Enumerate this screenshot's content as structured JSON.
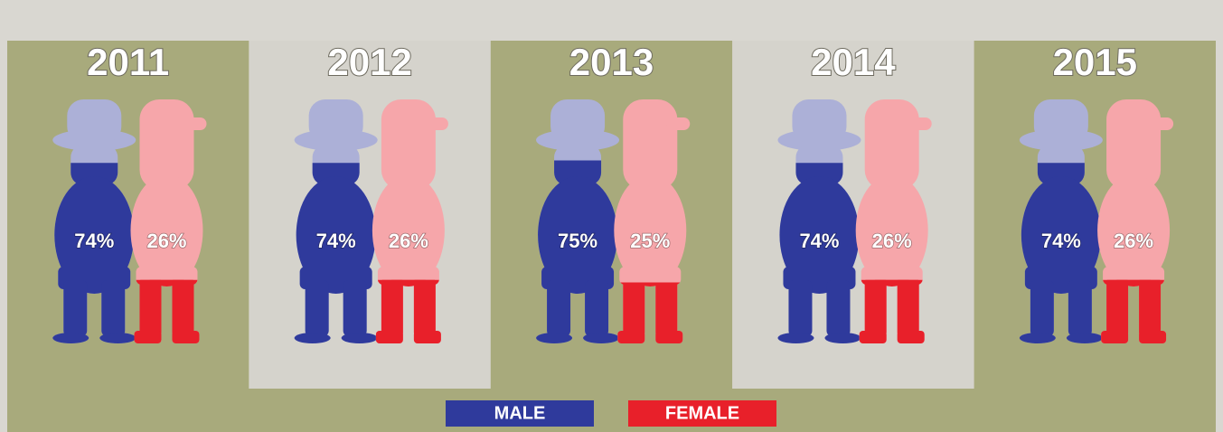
{
  "chart_data": {
    "type": "pictogram",
    "categories": [
      "2011",
      "2012",
      "2013",
      "2014",
      "2015"
    ],
    "series": [
      {
        "name": "MALE",
        "color": "#2f3a9c",
        "values": [
          74,
          74,
          75,
          74,
          74
        ],
        "value_labels": [
          "74%",
          "74%",
          "75%",
          "74%",
          "74%"
        ]
      },
      {
        "name": "FEMALE",
        "color": "#e8202a",
        "values": [
          26,
          26,
          25,
          26,
          26
        ],
        "value_labels": [
          "26%",
          "26%",
          "25%",
          "26%",
          "26%"
        ]
      }
    ]
  }
}
